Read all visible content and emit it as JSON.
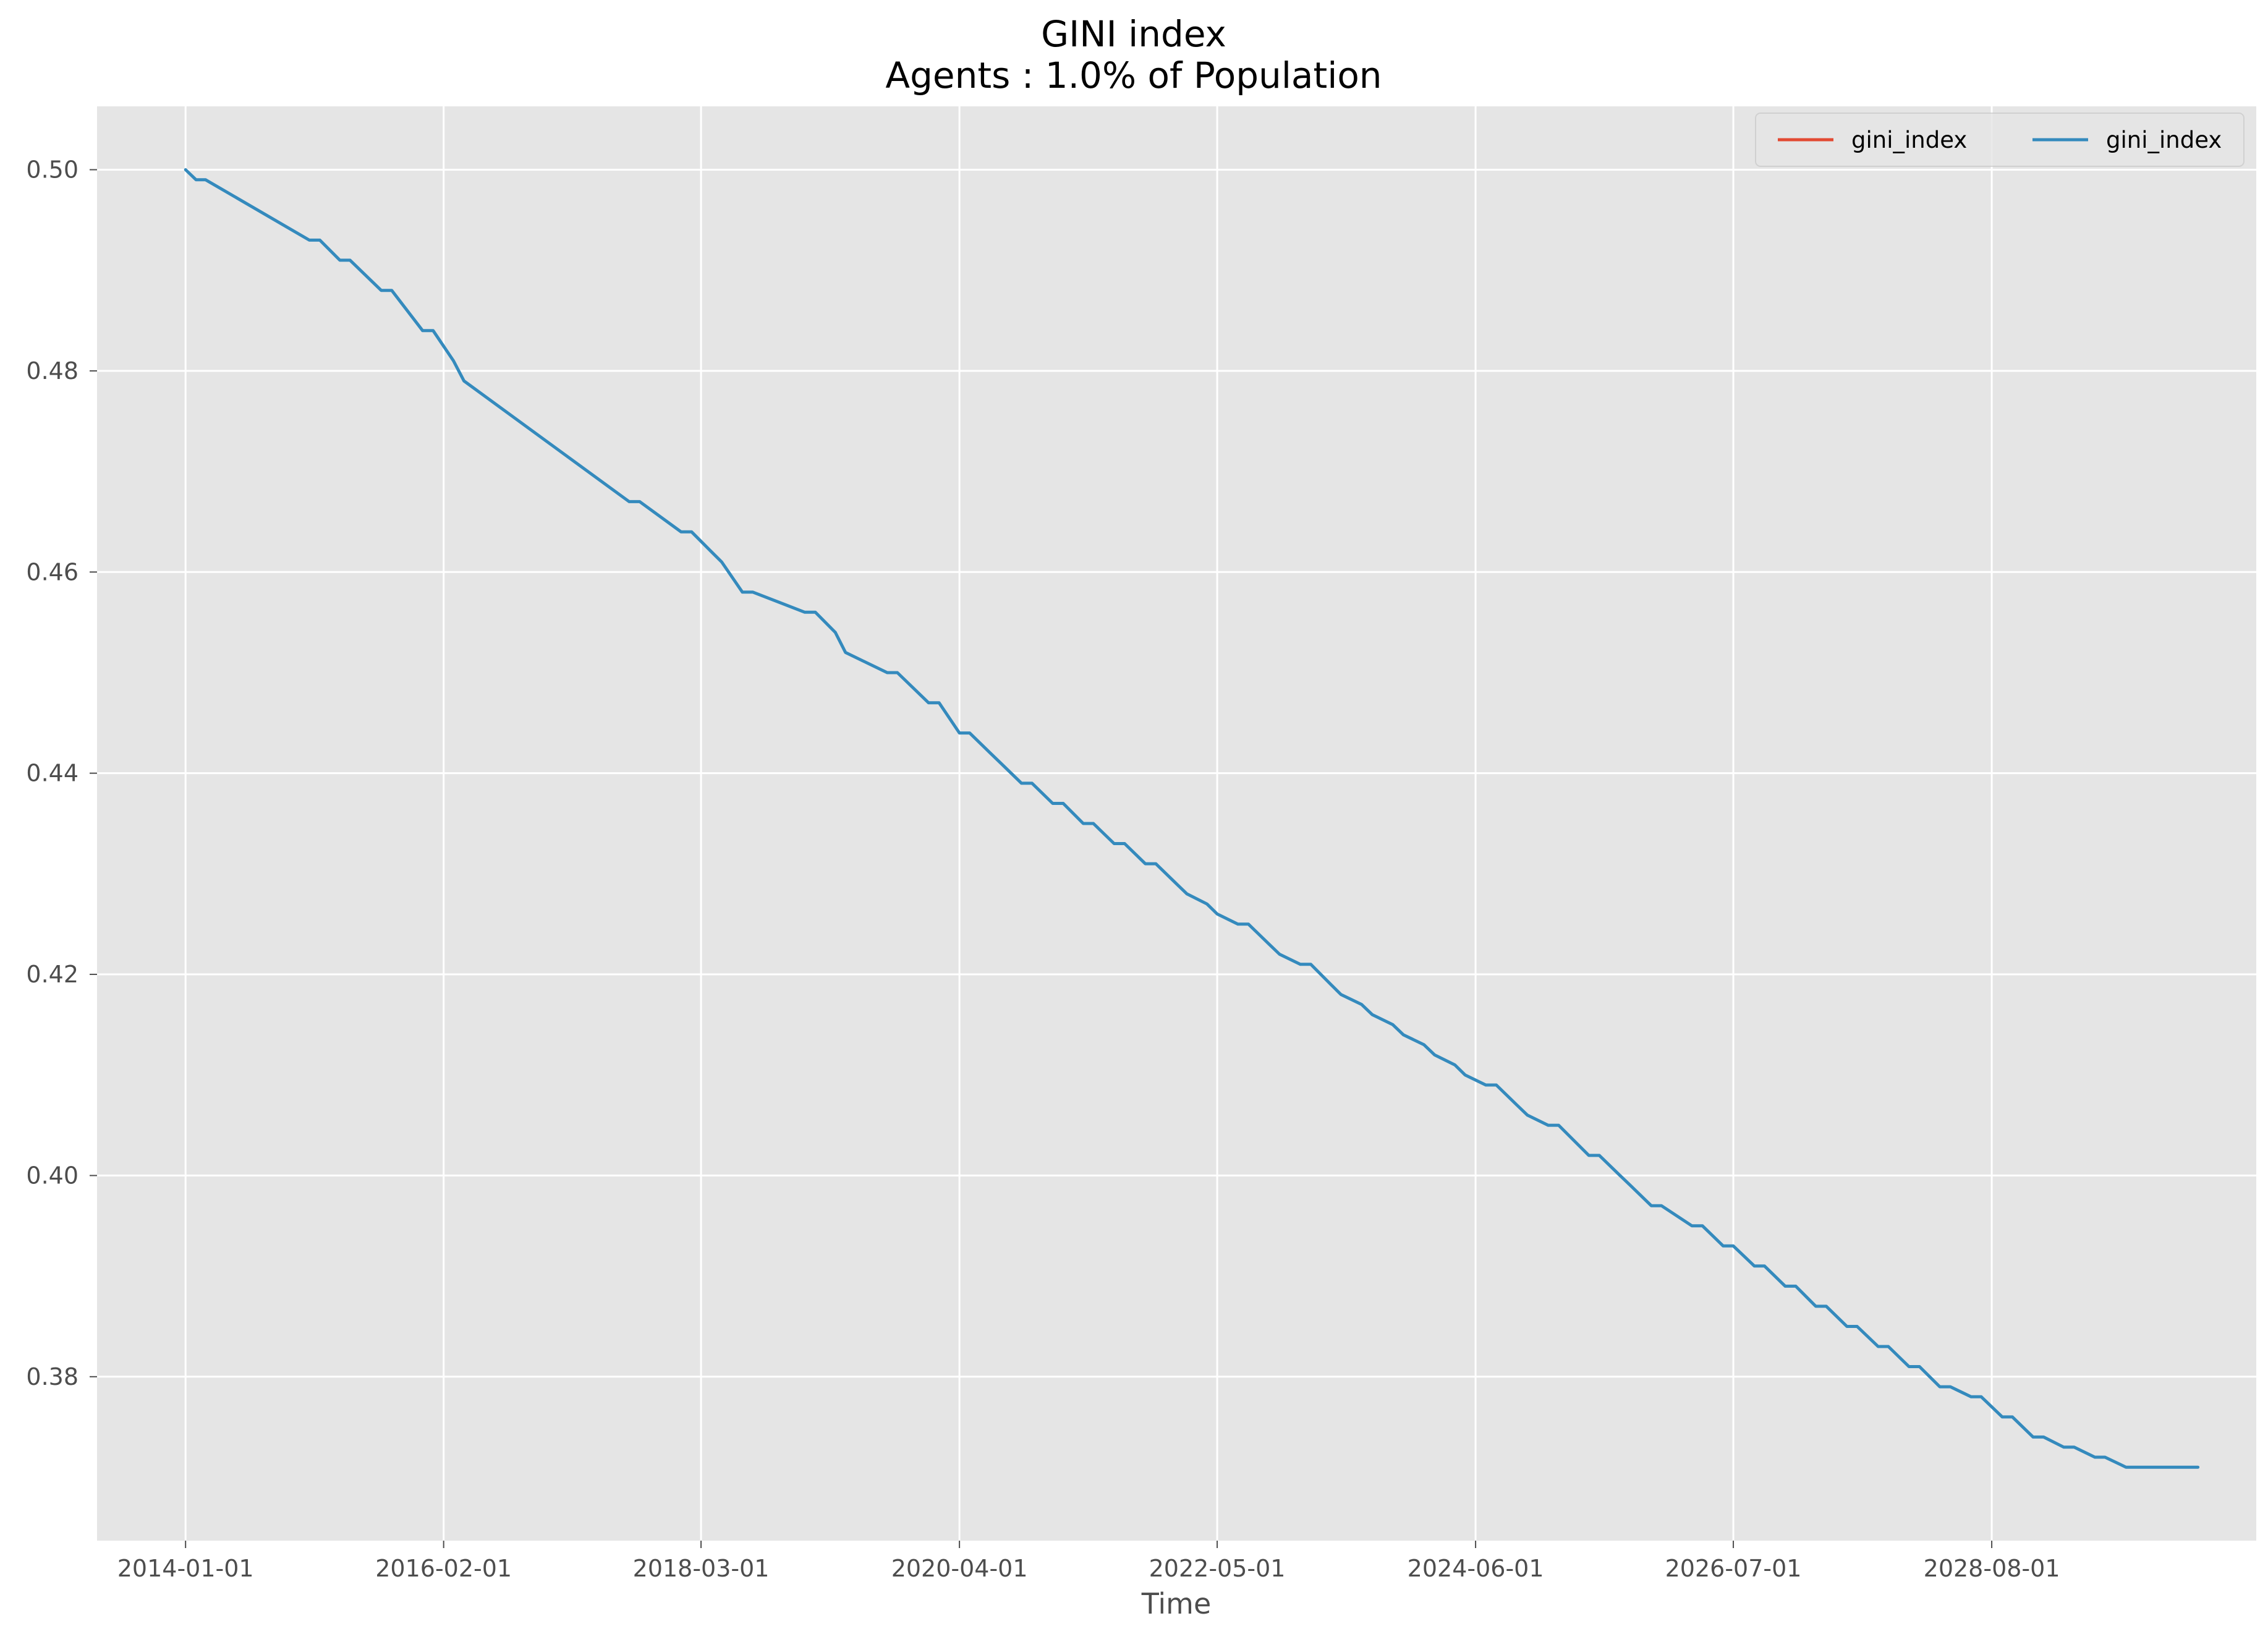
{
  "chart_data": {
    "type": "line",
    "title_line1": "GINI index",
    "title_line2": "Agents : 1.0% of Population",
    "xlabel": "Time",
    "ylabel": "",
    "x_ticks": [
      "2014-01-01",
      "2016-02-01",
      "2018-03-01",
      "2020-04-01",
      "2022-05-01",
      "2024-06-01",
      "2026-07-01",
      "2028-08-01"
    ],
    "y_ticks": [
      "0.38",
      "0.40",
      "0.42",
      "0.44",
      "0.46",
      "0.48",
      "0.50"
    ],
    "ylim": [
      0.3637,
      0.5063
    ],
    "xlim": [
      "2013-04-15",
      "2030-09-20"
    ],
    "grid": true,
    "legend_position": "top-right",
    "legend_entries": [
      "gini_index",
      "gini_index"
    ],
    "series": [
      {
        "name": "gini_index",
        "color": "#E24A33",
        "visible_line": false,
        "x": [
          "2014-01-01",
          "2030-04-01"
        ],
        "y": [
          0.5,
          0.371
        ]
      },
      {
        "name": "gini_index",
        "color": "#348ABD",
        "x": [
          "2014-01-01",
          "2014-02-01",
          "2014-03-01",
          "2015-01-01",
          "2015-02-01",
          "2015-04-01",
          "2015-05-01",
          "2015-08-01",
          "2015-09-01",
          "2015-12-01",
          "2016-01-01",
          "2016-03-01",
          "2016-04-01",
          "2017-08-01",
          "2017-09-01",
          "2018-01-01",
          "2018-02-01",
          "2018-04-01",
          "2018-05-01",
          "2018-07-01",
          "2018-08-01",
          "2019-01-01",
          "2019-02-01",
          "2019-04-01",
          "2019-05-01",
          "2019-09-01",
          "2019-10-01",
          "2020-01-01",
          "2020-02-01",
          "2020-04-01",
          "2020-05-01",
          "2020-07-01",
          "2020-08-01",
          "2020-10-01",
          "2020-11-01",
          "2021-01-01",
          "2021-02-01",
          "2021-04-01",
          "2021-05-01",
          "2021-07-01",
          "2021-08-01",
          "2021-10-01",
          "2021-11-01",
          "2022-01-01",
          "2022-02-01",
          "2022-04-01",
          "2022-05-01",
          "2022-07-01",
          "2022-08-01",
          "2022-10-01",
          "2022-11-01",
          "2023-01-01",
          "2023-02-01",
          "2023-04-01",
          "2023-05-01",
          "2023-07-01",
          "2023-08-01",
          "2023-10-01",
          "2023-11-01",
          "2024-01-01",
          "2024-02-01",
          "2024-04-01",
          "2024-05-01",
          "2024-07-01",
          "2024-08-01",
          "2024-10-01",
          "2024-11-01",
          "2025-01-01",
          "2025-02-01",
          "2025-05-01",
          "2025-06-01",
          "2025-08-01",
          "2025-09-01",
          "2025-11-01",
          "2025-12-01",
          "2026-03-01",
          "2026-04-01",
          "2026-06-01",
          "2026-07-01",
          "2026-09-01",
          "2026-10-01",
          "2026-12-01",
          "2027-01-01",
          "2027-03-01",
          "2027-04-01",
          "2027-06-01",
          "2027-07-01",
          "2027-09-01",
          "2027-10-01",
          "2027-12-01",
          "2028-01-01",
          "2028-03-01",
          "2028-04-01",
          "2028-06-01",
          "2028-07-01",
          "2028-09-01",
          "2028-10-01",
          "2028-12-01",
          "2029-01-01",
          "2029-03-01",
          "2029-04-01",
          "2029-06-01",
          "2029-07-01",
          "2029-09-01",
          "2029-10-01",
          "2030-01-01",
          "2030-02-01",
          "2030-04-01"
        ],
        "y": [
          0.5,
          0.499,
          0.499,
          0.493,
          0.493,
          0.491,
          0.491,
          0.488,
          0.488,
          0.484,
          0.484,
          0.481,
          0.479,
          0.467,
          0.467,
          0.464,
          0.464,
          0.462,
          0.461,
          0.458,
          0.458,
          0.456,
          0.456,
          0.454,
          0.452,
          0.45,
          0.45,
          0.447,
          0.447,
          0.444,
          0.444,
          0.442,
          0.441,
          0.439,
          0.439,
          0.437,
          0.437,
          0.435,
          0.435,
          0.433,
          0.433,
          0.431,
          0.431,
          0.429,
          0.428,
          0.427,
          0.426,
          0.425,
          0.425,
          0.423,
          0.422,
          0.421,
          0.421,
          0.419,
          0.418,
          0.417,
          0.416,
          0.415,
          0.414,
          0.413,
          0.412,
          0.411,
          0.41,
          0.409,
          0.409,
          0.407,
          0.406,
          0.405,
          0.405,
          0.402,
          0.402,
          0.4,
          0.399,
          0.397,
          0.397,
          0.395,
          0.395,
          0.393,
          0.393,
          0.391,
          0.391,
          0.389,
          0.389,
          0.387,
          0.387,
          0.385,
          0.385,
          0.383,
          0.383,
          0.381,
          0.381,
          0.379,
          0.379,
          0.378,
          0.378,
          0.376,
          0.376,
          0.374,
          0.374,
          0.373,
          0.373,
          0.372,
          0.372,
          0.371,
          0.371,
          0.371,
          0.371,
          0.371
        ]
      }
    ]
  }
}
